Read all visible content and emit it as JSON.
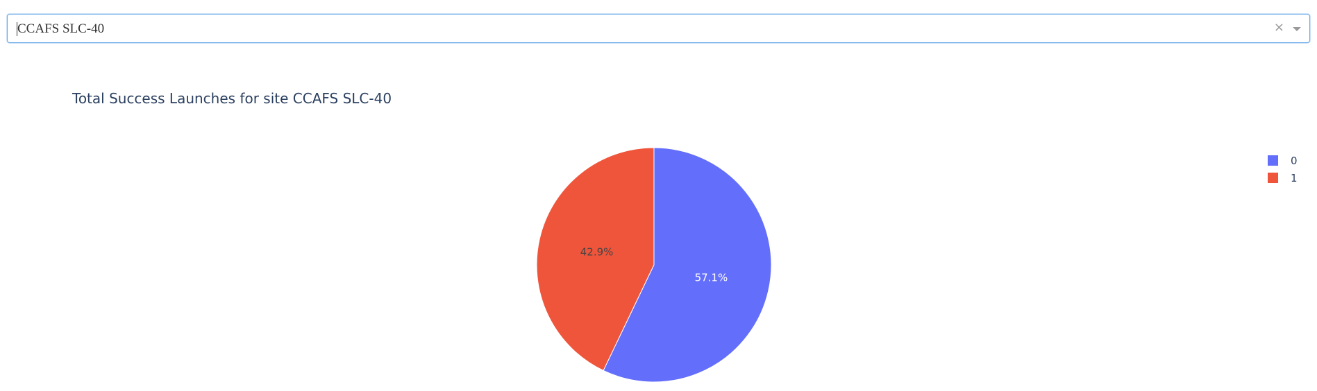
{
  "dropdown": {
    "value": "CCAFS SLC-40",
    "clear_symbol": "×"
  },
  "chart_data": {
    "type": "pie",
    "title": "Total Success Launches for site CCAFS SLC-40",
    "labels": [
      "0",
      "1"
    ],
    "percentages": [
      57.1,
      42.9
    ],
    "text": [
      "57.1%",
      "42.9%"
    ],
    "colors": [
      "#636efa",
      "#ef553b"
    ],
    "text_colors": [
      "#ffffff",
      "#444444"
    ],
    "legend": {
      "position": "top-right",
      "entries": [
        "0",
        "1"
      ]
    }
  }
}
